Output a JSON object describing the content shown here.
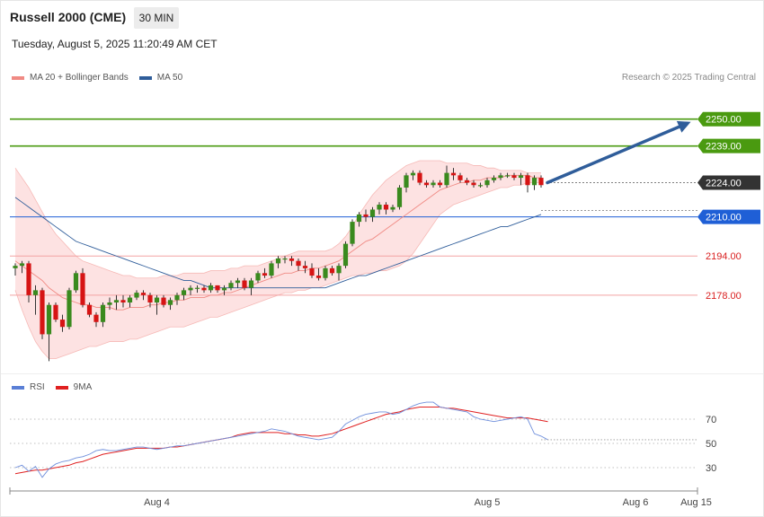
{
  "header": {
    "title": "Russell 2000 (CME)",
    "timeframe": "30 MIN",
    "datetime": "Tuesday, August 5, 2025 11:20:49 AM CET"
  },
  "legend": {
    "items": [
      {
        "label": "MA 20 + Bollinger Bands",
        "color": "#f08a84"
      },
      {
        "label": "MA 50",
        "color": "#2f5d9a"
      }
    ],
    "credit": "Research © 2025 Trading Central"
  },
  "rsi_legend": {
    "items": [
      {
        "label": "RSI",
        "color": "#5a7fd6"
      },
      {
        "label": "9MA",
        "color": "#e02020"
      }
    ]
  },
  "chart_data": [
    {
      "type": "candlestick",
      "ylim": [
        2146,
        2262
      ],
      "x_ticks": [
        {
          "label": "Aug 4",
          "index": 21
        },
        {
          "label": "Aug 5",
          "index": 70
        },
        {
          "label": "Aug 6",
          "index": 92
        },
        {
          "label": "Aug 15",
          "index": 101
        }
      ],
      "current_price": 2224.0,
      "levels": [
        {
          "value": 2250.0,
          "label": "2250.00",
          "kind": "resistance",
          "color": "#4a9a10"
        },
        {
          "value": 2239.0,
          "label": "2239.00",
          "kind": "resistance",
          "color": "#4a9a10"
        },
        {
          "value": 2224.0,
          "label": "2224.00",
          "kind": "current",
          "color": "#333333"
        },
        {
          "value": 2210.0,
          "label": "2210.00",
          "kind": "pivot",
          "color": "#1f5fd6"
        },
        {
          "value": 2194.0,
          "label": "2194.00",
          "kind": "support",
          "color": "#e06060"
        },
        {
          "value": 2178.0,
          "label": "2178.00",
          "kind": "support",
          "color": "#e06060"
        }
      ],
      "projection": {
        "from_value": 2224,
        "to_value": 2248,
        "color": "#2f5d9a"
      },
      "candles": [
        [
          2189,
          2191,
          2186,
          2190
        ],
        [
          2190,
          2192,
          2187,
          2191
        ],
        [
          2191,
          2192,
          2175,
          2178
        ],
        [
          2178,
          2182,
          2170,
          2180
        ],
        [
          2180,
          2181,
          2160,
          2162
        ],
        [
          2162,
          2175,
          2151,
          2174
        ],
        [
          2174,
          2175,
          2167,
          2168
        ],
        [
          2168,
          2170,
          2163,
          2165
        ],
        [
          2165,
          2181,
          2164,
          2180
        ],
        [
          2180,
          2188,
          2179,
          2187
        ],
        [
          2187,
          2189,
          2173,
          2174
        ],
        [
          2174,
          2175,
          2169,
          2170
        ],
        [
          2170,
          2171,
          2165,
          2167
        ],
        [
          2167,
          2175,
          2165,
          2174
        ],
        [
          2174,
          2177,
          2172,
          2175
        ],
        [
          2175,
          2178,
          2172,
          2176
        ],
        [
          2176,
          2178,
          2173,
          2175
        ],
        [
          2175,
          2178,
          2173,
          2177
        ],
        [
          2177,
          2180,
          2176,
          2179
        ],
        [
          2179,
          2180,
          2176,
          2178
        ],
        [
          2178,
          2179,
          2173,
          2175
        ],
        [
          2175,
          2178,
          2170,
          2177
        ],
        [
          2177,
          2178,
          2173,
          2174
        ],
        [
          2174,
          2177,
          2172,
          2176
        ],
        [
          2176,
          2179,
          2174,
          2178
        ],
        [
          2178,
          2181,
          2176,
          2180
        ],
        [
          2180,
          2182,
          2178,
          2181
        ],
        [
          2181,
          2182,
          2179,
          2181
        ],
        [
          2181,
          2182,
          2179,
          2180
        ],
        [
          2180,
          2183,
          2179,
          2182
        ],
        [
          2182,
          2182,
          2179,
          2180
        ],
        [
          2180,
          2182,
          2178,
          2181
        ],
        [
          2181,
          2184,
          2180,
          2183
        ],
        [
          2183,
          2185,
          2181,
          2184
        ],
        [
          2184,
          2185,
          2180,
          2181
        ],
        [
          2181,
          2185,
          2178,
          2184
        ],
        [
          2184,
          2188,
          2183,
          2187
        ],
        [
          2187,
          2189,
          2185,
          2186
        ],
        [
          2186,
          2192,
          2185,
          2191
        ],
        [
          2191,
          2194,
          2189,
          2193
        ],
        [
          2193,
          2194,
          2191,
          2193
        ],
        [
          2193,
          2194,
          2190,
          2192
        ],
        [
          2192,
          2193,
          2188,
          2190
        ],
        [
          2190,
          2192,
          2187,
          2189
        ],
        [
          2189,
          2191,
          2185,
          2186
        ],
        [
          2186,
          2189,
          2184,
          2185
        ],
        [
          2185,
          2190,
          2184,
          2189
        ],
        [
          2189,
          2190,
          2186,
          2187
        ],
        [
          2187,
          2191,
          2184,
          2190
        ],
        [
          2190,
          2200,
          2189,
          2199
        ],
        [
          2199,
          2209,
          2198,
          2208
        ],
        [
          2208,
          2212,
          2206,
          2211
        ],
        [
          2211,
          2213,
          2208,
          2210
        ],
        [
          2210,
          2214,
          2208,
          2213
        ],
        [
          2213,
          2216,
          2211,
          2215
        ],
        [
          2215,
          2216,
          2211,
          2213
        ],
        [
          2213,
          2215,
          2212,
          2214
        ],
        [
          2214,
          2223,
          2213,
          2222
        ],
        [
          2222,
          2228,
          2220,
          2227
        ],
        [
          2227,
          2229,
          2225,
          2228
        ],
        [
          2228,
          2229,
          2223,
          2224
        ],
        [
          2224,
          2225,
          2222,
          2223
        ],
        [
          2223,
          2225,
          2222,
          2224
        ],
        [
          2224,
          2225,
          2222,
          2223
        ],
        [
          2223,
          2231,
          2222,
          2228
        ],
        [
          2228,
          2230,
          2225,
          2227
        ],
        [
          2227,
          2228,
          2224,
          2225
        ],
        [
          2225,
          2226,
          2223,
          2224
        ],
        [
          2224,
          2225,
          2222,
          2223
        ],
        [
          2223,
          2224,
          2222,
          2223
        ],
        [
          2223,
          2226,
          2222,
          2225
        ],
        [
          2225,
          2227,
          2224,
          2226
        ],
        [
          2226,
          2228,
          2225,
          2227
        ],
        [
          2227,
          2228,
          2226,
          2227
        ],
        [
          2227,
          2228,
          2225,
          2226
        ],
        [
          2226,
          2228,
          2223,
          2227
        ],
        [
          2227,
          2228,
          2220,
          2223
        ],
        [
          2223,
          2227,
          2221,
          2226
        ],
        [
          2226,
          2227,
          2222,
          2223
        ]
      ],
      "ma20": [
        2192,
        2190,
        2188,
        2186,
        2184,
        2181,
        2179,
        2177,
        2176,
        2175,
        2174,
        2174,
        2173,
        2173,
        2173,
        2172,
        2172,
        2173,
        2173,
        2173,
        2174,
        2174,
        2175,
        2175,
        2176,
        2176,
        2177,
        2177,
        2177,
        2178,
        2178,
        2179,
        2179,
        2180,
        2181,
        2182,
        2183,
        2184,
        2185,
        2186,
        2187,
        2187,
        2188,
        2188,
        2189,
        2189,
        2190,
        2191,
        2192,
        2194,
        2196,
        2198,
        2200,
        2201,
        2203,
        2205,
        2207,
        2209,
        2211,
        2213,
        2215,
        2217,
        2219,
        2221,
        2222,
        2223,
        2224,
        2224,
        2225,
        2225,
        2226,
        2226,
        2226,
        2227,
        2227,
        2227,
        2227,
        2226,
        2226
      ],
      "bb_upper": [
        2230,
        2226,
        2222,
        2217,
        2212,
        2207,
        2203,
        2200,
        2197,
        2194,
        2192,
        2191,
        2190,
        2189,
        2188,
        2187,
        2186,
        2186,
        2185,
        2185,
        2185,
        2185,
        2186,
        2186,
        2186,
        2187,
        2187,
        2187,
        2187,
        2188,
        2188,
        2188,
        2189,
        2189,
        2190,
        2190,
        2190,
        2191,
        2192,
        2193,
        2194,
        2195,
        2196,
        2196,
        2196,
        2196,
        2196,
        2197,
        2199,
        2202,
        2206,
        2211,
        2215,
        2219,
        2222,
        2225,
        2227,
        2229,
        2231,
        2232,
        2233,
        2233,
        2233,
        2233,
        2232,
        2232,
        2232,
        2232,
        2231,
        2231,
        2230,
        2230,
        2229,
        2229,
        2229,
        2229,
        2228,
        2228,
        2228
      ],
      "bb_lower": [
        2180,
        2172,
        2165,
        2159,
        2155,
        2152,
        2152,
        2153,
        2154,
        2155,
        2156,
        2157,
        2157,
        2158,
        2159,
        2159,
        2159,
        2160,
        2160,
        2161,
        2162,
        2163,
        2164,
        2165,
        2165,
        2165,
        2166,
        2167,
        2168,
        2169,
        2169,
        2170,
        2171,
        2172,
        2173,
        2174,
        2175,
        2176,
        2177,
        2178,
        2179,
        2179,
        2180,
        2180,
        2181,
        2181,
        2182,
        2183,
        2184,
        2185,
        2186,
        2186,
        2187,
        2187,
        2188,
        2188,
        2189,
        2190,
        2192,
        2195,
        2199,
        2203,
        2207,
        2211,
        2213,
        2215,
        2216,
        2217,
        2218,
        2219,
        2220,
        2221,
        2222,
        2222,
        2223,
        2223,
        2224,
        2224,
        2224
      ],
      "ma50": [
        2218,
        2216,
        2214,
        2212,
        2210,
        2208,
        2206,
        2204,
        2202,
        2200,
        2199,
        2198,
        2197,
        2196,
        2195,
        2194,
        2193,
        2192,
        2191,
        2190,
        2189,
        2188,
        2187,
        2186,
        2185,
        2184,
        2184,
        2183,
        2182,
        2181,
        2181,
        2181,
        2181,
        2181,
        2181,
        2181,
        2181,
        2181,
        2181,
        2181,
        2181,
        2181,
        2181,
        2181,
        2181,
        2181,
        2181,
        2182,
        2183,
        2184,
        2185,
        2186,
        2186,
        2187,
        2188,
        2189,
        2190,
        2191,
        2192,
        2193,
        2194,
        2195,
        2196,
        2197,
        2198,
        2199,
        2200,
        2201,
        2202,
        2203,
        2204,
        2205,
        2206,
        2206,
        2207,
        2208,
        2209,
        2210,
        2211
      ]
    },
    {
      "type": "line",
      "ylim": [
        10,
        90
      ],
      "levels": [
        {
          "value": 70,
          "label": "70"
        },
        {
          "value": 50,
          "label": "50"
        },
        {
          "value": 30,
          "label": "30"
        }
      ],
      "rsi": [
        30,
        32,
        27,
        31,
        22,
        29,
        33,
        35,
        36,
        38,
        39,
        41,
        44,
        45,
        44,
        44,
        45,
        46,
        47,
        47,
        46,
        45,
        46,
        47,
        48,
        48,
        49,
        50,
        51,
        52,
        53,
        54,
        55,
        56,
        57,
        58,
        59,
        60,
        62,
        61,
        60,
        58,
        56,
        55,
        54,
        53,
        54,
        55,
        60,
        66,
        69,
        72,
        74,
        75,
        76,
        76,
        74,
        75,
        78,
        81,
        83,
        84,
        84,
        80,
        79,
        78,
        77,
        76,
        72,
        70,
        69,
        68,
        69,
        70,
        71,
        72,
        70,
        58,
        56,
        53
      ],
      "ma9": [
        25,
        26,
        27,
        28,
        28,
        29,
        30,
        31,
        32,
        34,
        35,
        37,
        39,
        41,
        42,
        43,
        44,
        45,
        46,
        46,
        46,
        46,
        46,
        47,
        47,
        48,
        49,
        50,
        51,
        52,
        53,
        54,
        55,
        57,
        58,
        59,
        59,
        59,
        59,
        59,
        58,
        58,
        57,
        57,
        56,
        56,
        57,
        58,
        60,
        62,
        64,
        66,
        68,
        70,
        72,
        74,
        75,
        76,
        78,
        79,
        80,
        80,
        80,
        80,
        79,
        79,
        78,
        77,
        76,
        75,
        74,
        73,
        72,
        71,
        71,
        71,
        71,
        70,
        69,
        68
      ]
    }
  ]
}
